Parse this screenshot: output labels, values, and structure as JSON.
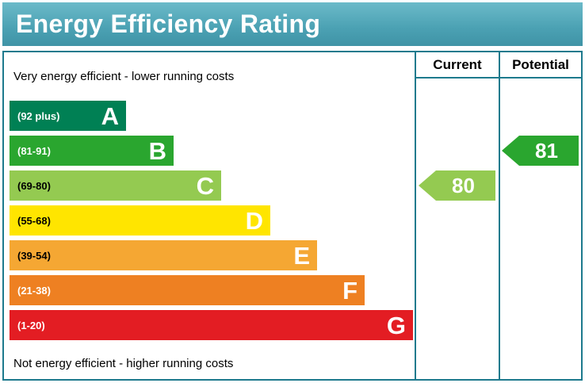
{
  "title": "Energy Efficiency Rating",
  "columns": {
    "current": "Current",
    "potential": "Potential"
  },
  "notes": {
    "top": "Very energy efficient - lower running costs",
    "bottom": "Not energy efficient - higher running costs"
  },
  "colors": {
    "title_bar_background": "#4ba1b3",
    "chart_border": "#1d7a8d"
  },
  "chart_data": {
    "type": "bar",
    "title": "Energy Efficiency Rating",
    "categories": [
      "A",
      "B",
      "C",
      "D",
      "E",
      "F",
      "G"
    ],
    "bands": [
      {
        "letter": "A",
        "range": "(92 plus)",
        "color": "#008054",
        "label_color": "#ffffff"
      },
      {
        "letter": "B",
        "range": "(81-91)",
        "color": "#2aa62f",
        "label_color": "#ffffff"
      },
      {
        "letter": "C",
        "range": "(69-80)",
        "color": "#94ca51",
        "label_color": "#000000"
      },
      {
        "letter": "D",
        "range": "(55-68)",
        "color": "#ffe500",
        "label_color": "#000000"
      },
      {
        "letter": "E",
        "range": "(39-54)",
        "color": "#f5a733",
        "label_color": "#000000"
      },
      {
        "letter": "F",
        "range": "(21-38)",
        "color": "#ee8022",
        "label_color": "#ffffff"
      },
      {
        "letter": "G",
        "range": "(1-20)",
        "color": "#e31d23",
        "label_color": "#ffffff"
      }
    ],
    "current": {
      "value": "80",
      "band": "C",
      "color": "#94ca51"
    },
    "potential": {
      "value": "81",
      "band": "B",
      "color": "#2aa62f"
    },
    "legend_position": "none",
    "grid": false
  }
}
